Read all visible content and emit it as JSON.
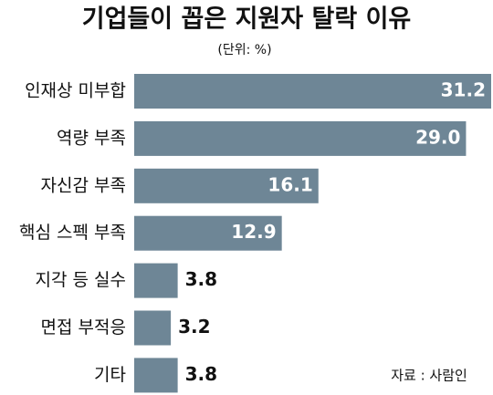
{
  "chart_data": {
    "type": "bar",
    "orientation": "horizontal",
    "title": "기업들이 꼽은 지원자 탈락 이유",
    "subtitle": "(단위: %)",
    "source": "자료 : 사람인",
    "categories": [
      "인재상 미부합",
      "역량 부족",
      "자신감 부족",
      "핵심 스펙 부족",
      "지각 등 실수",
      "면접 부적응",
      "기타"
    ],
    "values": [
      31.2,
      29.0,
      16.1,
      12.9,
      3.8,
      3.2,
      3.8
    ],
    "value_labels": [
      "31.2",
      "29.0",
      "16.1",
      "12.9",
      "3.8",
      "3.2",
      "3.8"
    ],
    "color": "#6e8696"
  }
}
